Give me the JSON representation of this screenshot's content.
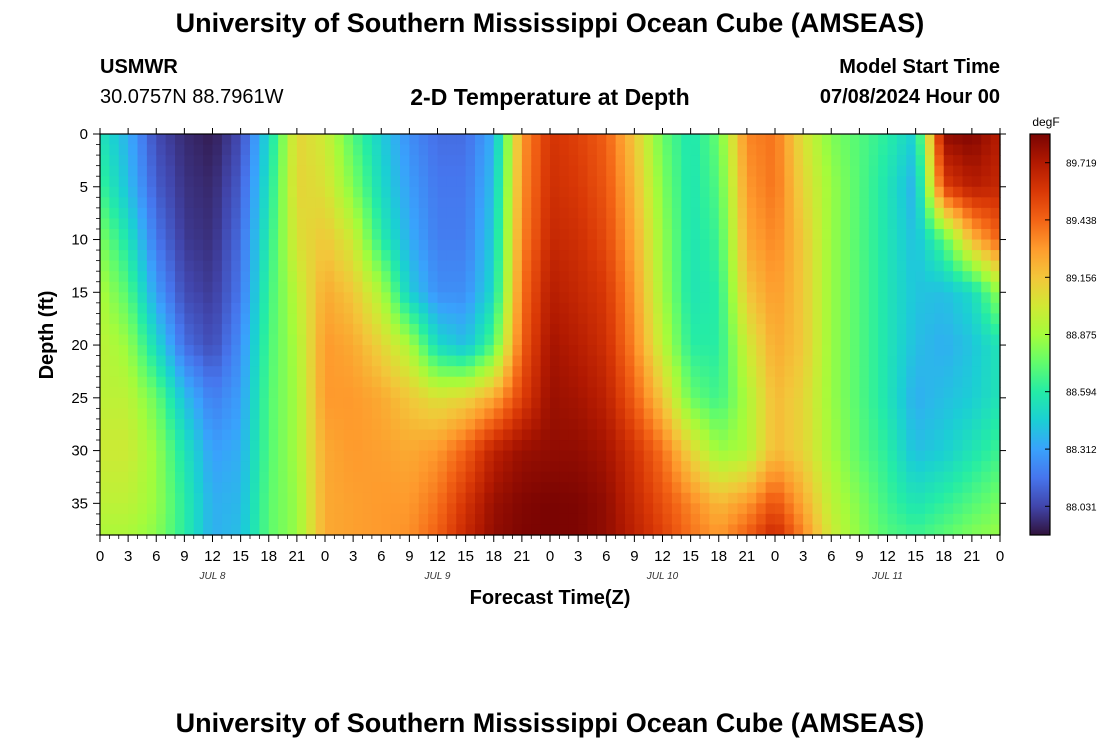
{
  "header": {
    "title": "University of Southern Mississippi Ocean Cube (AMSEAS)",
    "station": "USMWR",
    "coords": "30.0757N  88.7961W",
    "plot_title": "2-D Temperature at Depth",
    "model_start_label": "Model Start Time",
    "model_start_value": "07/08/2024 Hour 00"
  },
  "footer": {
    "title": "University of Southern Mississippi Ocean Cube (AMSEAS)"
  },
  "chart_data": {
    "type": "heatmap",
    "title": "2-D Temperature at Depth",
    "xlabel": "Forecast Time(Z)",
    "ylabel": "Depth (ft)",
    "x_tick_labels": [
      "0",
      "3",
      "6",
      "9",
      "12",
      "15",
      "18",
      "21",
      "0",
      "3",
      "6",
      "9",
      "12",
      "15",
      "18",
      "21",
      "0",
      "3",
      "6",
      "9",
      "12",
      "15",
      "18",
      "21",
      "0",
      "3",
      "6",
      "9",
      "12",
      "15",
      "18",
      "21",
      "0"
    ],
    "x_hours": [
      0,
      3,
      6,
      9,
      12,
      15,
      18,
      21,
      24,
      27,
      30,
      33,
      36,
      39,
      42,
      45,
      48,
      51,
      54,
      57,
      60,
      63,
      66,
      69,
      72,
      75,
      78,
      81,
      84,
      87,
      90,
      93,
      96
    ],
    "day_labels": [
      {
        "label": "JUL 8",
        "hour": 12
      },
      {
        "label": "JUL 9",
        "hour": 36
      },
      {
        "label": "JUL 10",
        "hour": 60
      },
      {
        "label": "JUL 11",
        "hour": 84
      }
    ],
    "xlim": [
      0,
      96
    ],
    "y_ticks": [
      0,
      5,
      10,
      15,
      20,
      25,
      30,
      35
    ],
    "ylim": [
      0,
      38
    ],
    "y_inverted": true,
    "colorbar": {
      "unit": "degF",
      "range": [
        87.89,
        89.86
      ],
      "ticks": [
        88.031,
        88.312,
        88.594,
        88.875,
        89.156,
        89.438,
        89.719
      ],
      "tick_labels": [
        "88.031",
        "88.312",
        "88.594",
        "88.875",
        "89.156",
        "89.438",
        "89.719"
      ],
      "colormap": [
        "#30123b",
        "#4145ab",
        "#4675ed",
        "#39a2fc",
        "#1bcfd4",
        "#24eca6",
        "#61fc6c",
        "#a4fc3b",
        "#d1e834",
        "#f3c63a",
        "#fe9b2d",
        "#f36315",
        "#d93806",
        "#b11901",
        "#7a0402"
      ]
    },
    "depth_rows": [
      0,
      5,
      10,
      15,
      20,
      25,
      30,
      35,
      38
    ],
    "time_cols": [
      0,
      3,
      6,
      9,
      12,
      15,
      18,
      21,
      24,
      27,
      30,
      33,
      36,
      39,
      42,
      45,
      48,
      51,
      54,
      57,
      60,
      63,
      66,
      69,
      72,
      75,
      78,
      81,
      84,
      87,
      90,
      93,
      96
    ],
    "values": [
      [
        88.55,
        88.35,
        88.05,
        87.96,
        87.92,
        88.05,
        88.5,
        89.1,
        89.0,
        88.7,
        88.45,
        88.25,
        88.15,
        88.15,
        88.35,
        89.3,
        89.6,
        89.55,
        89.45,
        89.15,
        88.75,
        88.55,
        88.75,
        89.35,
        89.4,
        89.05,
        88.8,
        88.7,
        88.6,
        88.45,
        89.8,
        89.84,
        89.7
      ],
      [
        88.65,
        88.4,
        88.1,
        87.98,
        87.95,
        88.1,
        88.55,
        89.1,
        89.05,
        88.8,
        88.5,
        88.3,
        88.18,
        88.18,
        88.4,
        89.32,
        89.62,
        89.58,
        89.48,
        89.2,
        88.8,
        88.55,
        88.7,
        89.3,
        89.4,
        89.1,
        88.85,
        88.7,
        88.55,
        88.35,
        89.55,
        89.7,
        89.65
      ],
      [
        88.8,
        88.55,
        88.18,
        88.0,
        87.97,
        88.15,
        88.6,
        89.05,
        89.15,
        89.0,
        88.6,
        88.35,
        88.2,
        88.2,
        88.45,
        89.35,
        89.65,
        89.62,
        89.52,
        89.25,
        88.85,
        88.55,
        88.65,
        89.25,
        89.35,
        89.15,
        88.85,
        88.7,
        88.55,
        88.4,
        88.7,
        89.2,
        89.45
      ],
      [
        88.9,
        88.7,
        88.3,
        88.05,
        88.0,
        88.18,
        88.65,
        88.95,
        89.25,
        89.15,
        88.9,
        88.45,
        88.25,
        88.25,
        88.5,
        89.4,
        89.7,
        89.65,
        89.58,
        89.3,
        88.88,
        88.55,
        88.6,
        89.15,
        89.3,
        89.15,
        88.85,
        88.7,
        88.55,
        88.42,
        88.4,
        88.5,
        88.85
      ],
      [
        88.95,
        88.85,
        88.5,
        88.15,
        88.05,
        88.25,
        88.68,
        88.9,
        89.3,
        89.25,
        89.1,
        88.9,
        88.5,
        88.4,
        88.7,
        89.45,
        89.75,
        89.7,
        89.62,
        89.35,
        88.95,
        88.6,
        88.6,
        89.0,
        89.25,
        89.15,
        88.85,
        88.7,
        88.55,
        88.4,
        88.35,
        88.42,
        88.55
      ],
      [
        88.95,
        88.95,
        88.75,
        88.4,
        88.2,
        88.3,
        88.7,
        88.88,
        89.3,
        89.3,
        89.25,
        89.15,
        89.05,
        89.1,
        89.25,
        89.55,
        89.78,
        89.75,
        89.68,
        89.45,
        89.15,
        88.75,
        88.65,
        88.9,
        89.2,
        89.1,
        88.85,
        88.7,
        88.55,
        88.35,
        88.4,
        88.45,
        88.55
      ],
      [
        89.0,
        89.0,
        88.85,
        88.55,
        88.3,
        88.35,
        88.7,
        88.88,
        89.25,
        89.3,
        89.28,
        89.25,
        89.3,
        89.45,
        89.68,
        89.78,
        89.8,
        89.8,
        89.75,
        89.6,
        89.4,
        89.1,
        88.85,
        88.9,
        89.2,
        89.1,
        88.88,
        88.72,
        88.6,
        88.4,
        88.45,
        88.55,
        88.65
      ],
      [
        88.95,
        88.95,
        88.85,
        88.6,
        88.35,
        88.38,
        88.72,
        88.85,
        89.25,
        89.28,
        89.3,
        89.3,
        89.4,
        89.6,
        89.78,
        89.84,
        89.86,
        89.85,
        89.8,
        89.65,
        89.5,
        89.35,
        89.2,
        89.3,
        89.5,
        89.25,
        88.95,
        88.8,
        88.65,
        88.55,
        88.62,
        88.7,
        88.78
      ],
      [
        88.9,
        88.9,
        88.82,
        88.6,
        88.35,
        88.4,
        88.72,
        88.85,
        89.25,
        89.28,
        89.3,
        89.32,
        89.45,
        89.65,
        89.8,
        89.85,
        89.86,
        89.85,
        89.8,
        89.68,
        89.55,
        89.4,
        89.3,
        89.45,
        89.65,
        89.35,
        89.0,
        88.82,
        88.7,
        88.65,
        88.72,
        88.8,
        88.85
      ]
    ]
  }
}
